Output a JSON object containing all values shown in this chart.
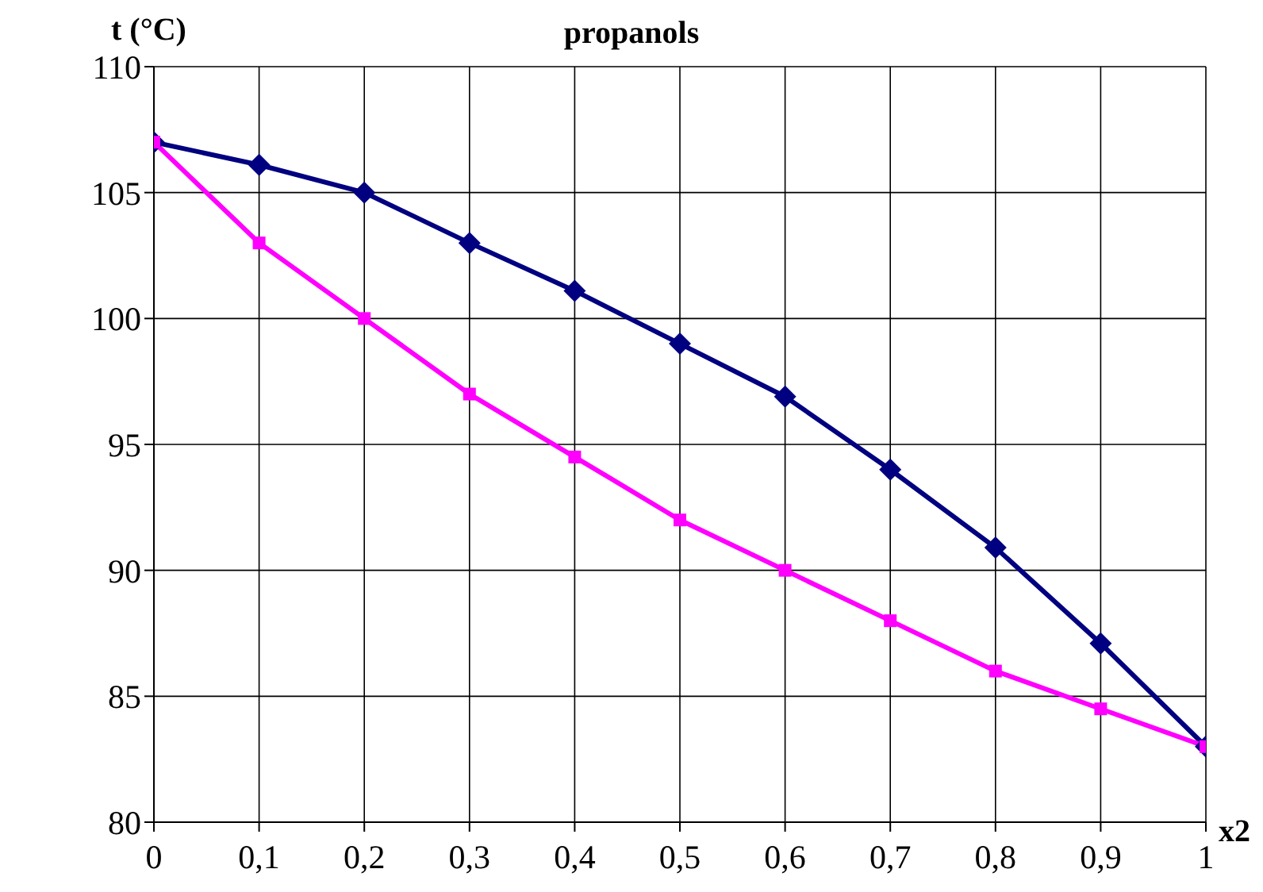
{
  "chart_data": {
    "type": "line",
    "title": "propanols",
    "ylabel": "t (°C)",
    "xlabel": "x2",
    "x": [
      0,
      0.1,
      0.2,
      0.3,
      0.4,
      0.5,
      0.6,
      0.7,
      0.8,
      0.9,
      1
    ],
    "series": [
      {
        "color": "#000080",
        "marker": "diamond",
        "values": [
          107,
          106.1,
          105,
          103,
          101.1,
          99,
          96.9,
          94,
          90.9,
          87.1,
          83
        ]
      },
      {
        "color": "#ff00ff",
        "marker": "square",
        "values": [
          107,
          103,
          100,
          97,
          94.5,
          92,
          90,
          88,
          86,
          84.5,
          83
        ]
      }
    ],
    "xlim": [
      0,
      1
    ],
    "xticks": [
      0,
      {
        "value": 0.1,
        "label": "0,1"
      },
      {
        "value": 0.2,
        "label": "0,2"
      },
      {
        "value": 0.3,
        "label": "0,3"
      },
      {
        "value": 0.4,
        "label": "0,4"
      },
      {
        "value": 0.5,
        "label": "0,5"
      },
      {
        "value": 0.6,
        "label": "0,6"
      },
      {
        "value": 0.7,
        "label": "0,7"
      },
      {
        "value": 0.8,
        "label": "0,8"
      },
      {
        "value": 0.9,
        "label": "0,9"
      },
      1
    ],
    "ylim": [
      80,
      110
    ],
    "yticks": [
      80,
      85,
      90,
      95,
      100,
      105,
      110
    ],
    "grid": true,
    "legend": false
  }
}
